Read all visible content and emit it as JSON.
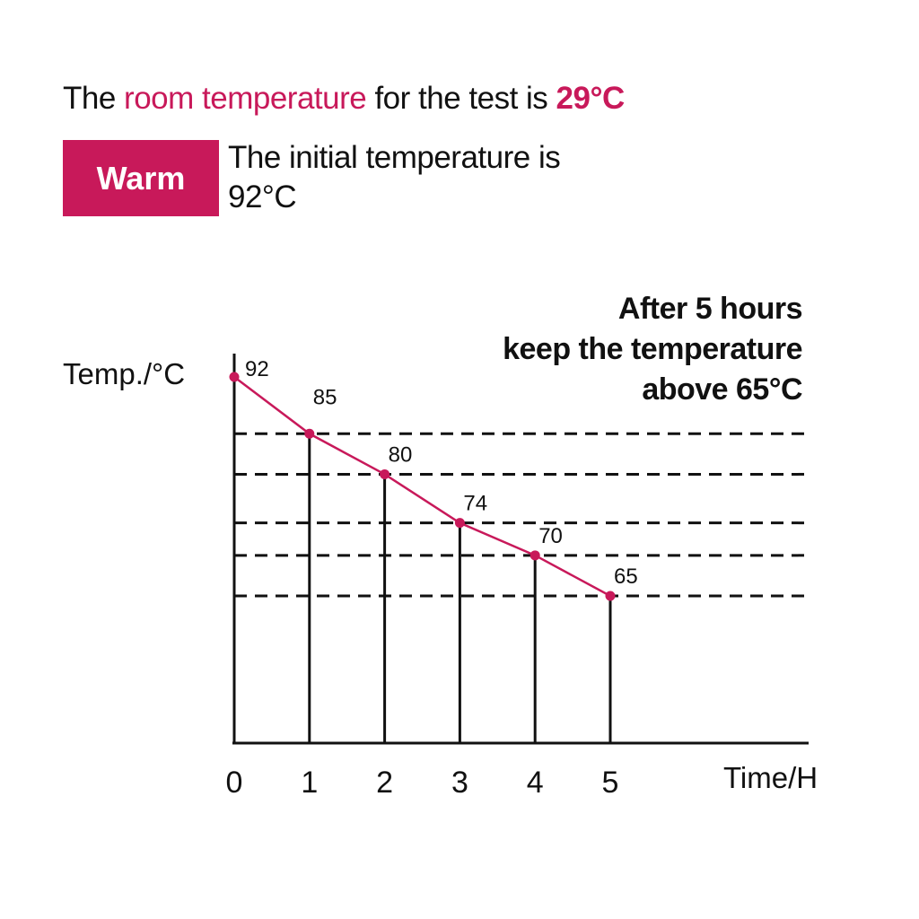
{
  "headline": {
    "prefix": "The ",
    "highlight": "room temperature",
    "middle": " for the test is ",
    "value": "29°C"
  },
  "badge": {
    "label": "Warm"
  },
  "initial_text": "The initial temperature is 92°C",
  "note": {
    "line1": "After 5 hours",
    "line2": "keep the temperature",
    "line3": "above 65°C"
  },
  "colors": {
    "accent": "#c8195a",
    "ink": "#111111"
  },
  "chart_data": {
    "type": "line",
    "title": "",
    "xlabel": "Time/H",
    "ylabel": "Temp./°C",
    "x": [
      0,
      1,
      2,
      3,
      4,
      5
    ],
    "x_tick_labels": [
      "0",
      "1",
      "2",
      "3",
      "4",
      "5"
    ],
    "series": [
      {
        "values": [
          92,
          85,
          80,
          74,
          70,
          65
        ],
        "data_labels": [
          "92",
          "85",
          "80",
          "74",
          "70",
          "65"
        ],
        "color": "#c8195a"
      }
    ],
    "reference_lines": "dashed horizontal lines at 85, 80, 74, 70, 65",
    "grid": false,
    "legend": "none"
  }
}
